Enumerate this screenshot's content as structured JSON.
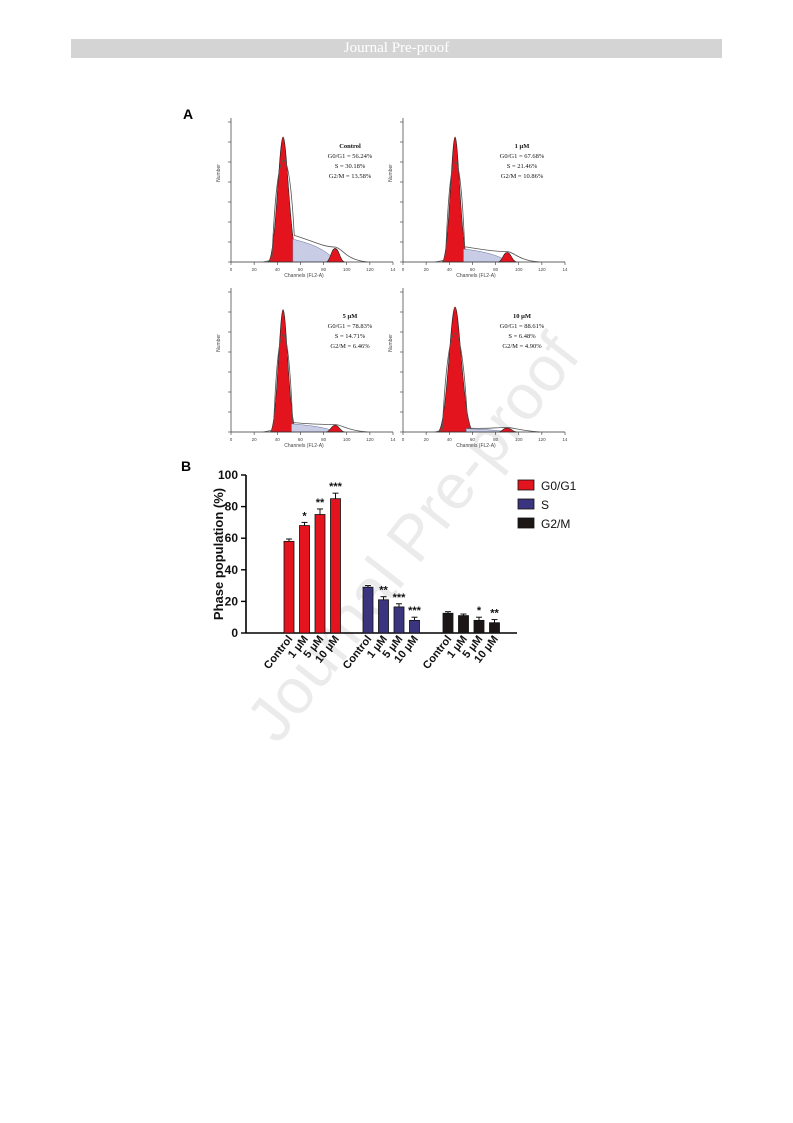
{
  "header": {
    "title": "Journal Pre-proof"
  },
  "watermark": "Journal Pre-proof",
  "figure": {
    "panel_a_label": "A",
    "panel_b_label": "B",
    "histograms": [
      {
        "title": "Control",
        "lines": [
          "G0/G1 = 56.24%",
          "S = 30.18%",
          "G2/M = 13.58%"
        ]
      },
      {
        "title": "1 μM",
        "lines": [
          "G0/G1 = 67.68%",
          "S = 21.46%",
          "G2/M = 10.86%"
        ]
      },
      {
        "title": "5 μM",
        "lines": [
          "G0/G1 = 78.83%",
          "S = 14.71%",
          "G2/M = 6.46%"
        ]
      },
      {
        "title": "10 μM",
        "lines": [
          "G0/G1 = 88.61%",
          "S = 6.48%",
          "G2/M = 4.90%"
        ]
      }
    ],
    "histogram_xlabel": "Channels (FL2-A)",
    "histogram_ylabel": "Number",
    "histogram_xticks": [
      "0",
      "20",
      "40",
      "60",
      "80",
      "100",
      "120",
      "14"
    ]
  },
  "chart_data": {
    "type": "bar",
    "ylabel": "Phase population (%)",
    "ylim": [
      0,
      100
    ],
    "yticks": [
      0,
      20,
      40,
      60,
      80,
      100
    ],
    "groups": [
      "G0/G1",
      "S",
      "G2/M"
    ],
    "categories": [
      "Control",
      "1 μM",
      "5 μM",
      "10 μM"
    ],
    "series": [
      {
        "name": "G0/G1",
        "color": "#e4141e",
        "values": [
          58,
          68,
          75,
          85
        ],
        "errors": [
          1.5,
          2,
          3.5,
          3.5
        ],
        "significance": [
          "",
          "*",
          "**",
          "***"
        ]
      },
      {
        "name": "S",
        "color": "#3b3580",
        "values": [
          29,
          21,
          16.5,
          8
        ],
        "errors": [
          1,
          2,
          2,
          2
        ],
        "significance": [
          "",
          "**",
          "***",
          "***"
        ]
      },
      {
        "name": "G2/M",
        "color": "#1c1616",
        "values": [
          12.5,
          11,
          8,
          6.5
        ],
        "errors": [
          1,
          1,
          2,
          2
        ],
        "significance": [
          "",
          "",
          "*",
          "**"
        ]
      }
    ],
    "legend": {
      "placement": "right",
      "items": [
        "G0/G1",
        "S",
        "G2/M"
      ]
    }
  }
}
